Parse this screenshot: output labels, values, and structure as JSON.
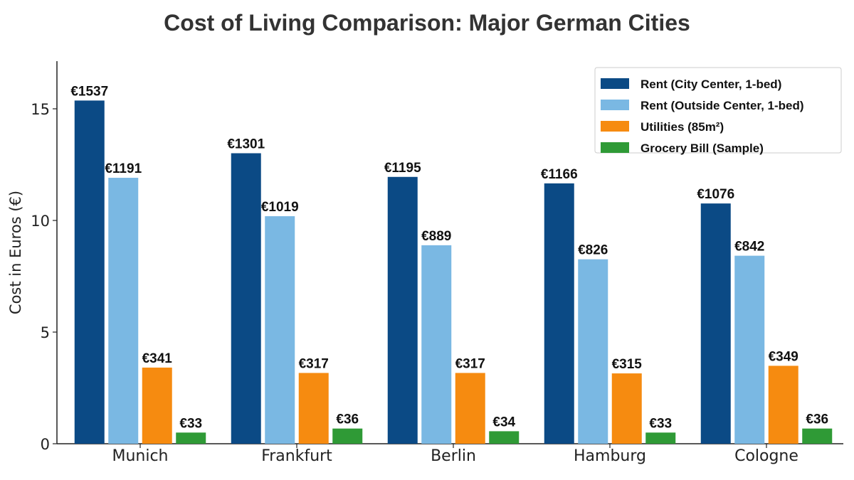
{
  "chart_data": {
    "type": "bar",
    "title": "Cost of Living Comparison: Major German Cities",
    "xlabel": "",
    "ylabel": "Cost in Euros (€)",
    "ylim": [
      0,
      17.2
    ],
    "yticks": [
      0,
      5,
      10,
      15
    ],
    "value_scale_note_hidden": 100,
    "categories": [
      "Munich",
      "Frankfurt",
      "Berlin",
      "Hamburg",
      "Cologne"
    ],
    "series": [
      {
        "name": "Rent (City Center, 1-bed)",
        "color": "#0b4a85",
        "values": [
          1537,
          1301,
          1195,
          1166,
          1076
        ]
      },
      {
        "name": "Rent (Outside Center, 1-bed)",
        "color": "#7ab8e3",
        "values": [
          1191,
          1019,
          889,
          826,
          842
        ]
      },
      {
        "name": "Utilities (85m²)",
        "color": "#f68b10",
        "values": [
          341,
          317,
          317,
          315,
          349
        ]
      },
      {
        "name": "Grocery Bill (Sample)",
        "color": "#2f9a36",
        "values": [
          33,
          36,
          34,
          33,
          36
        ]
      }
    ],
    "label_prefix": "€",
    "grid": false,
    "legend": "top-right"
  }
}
